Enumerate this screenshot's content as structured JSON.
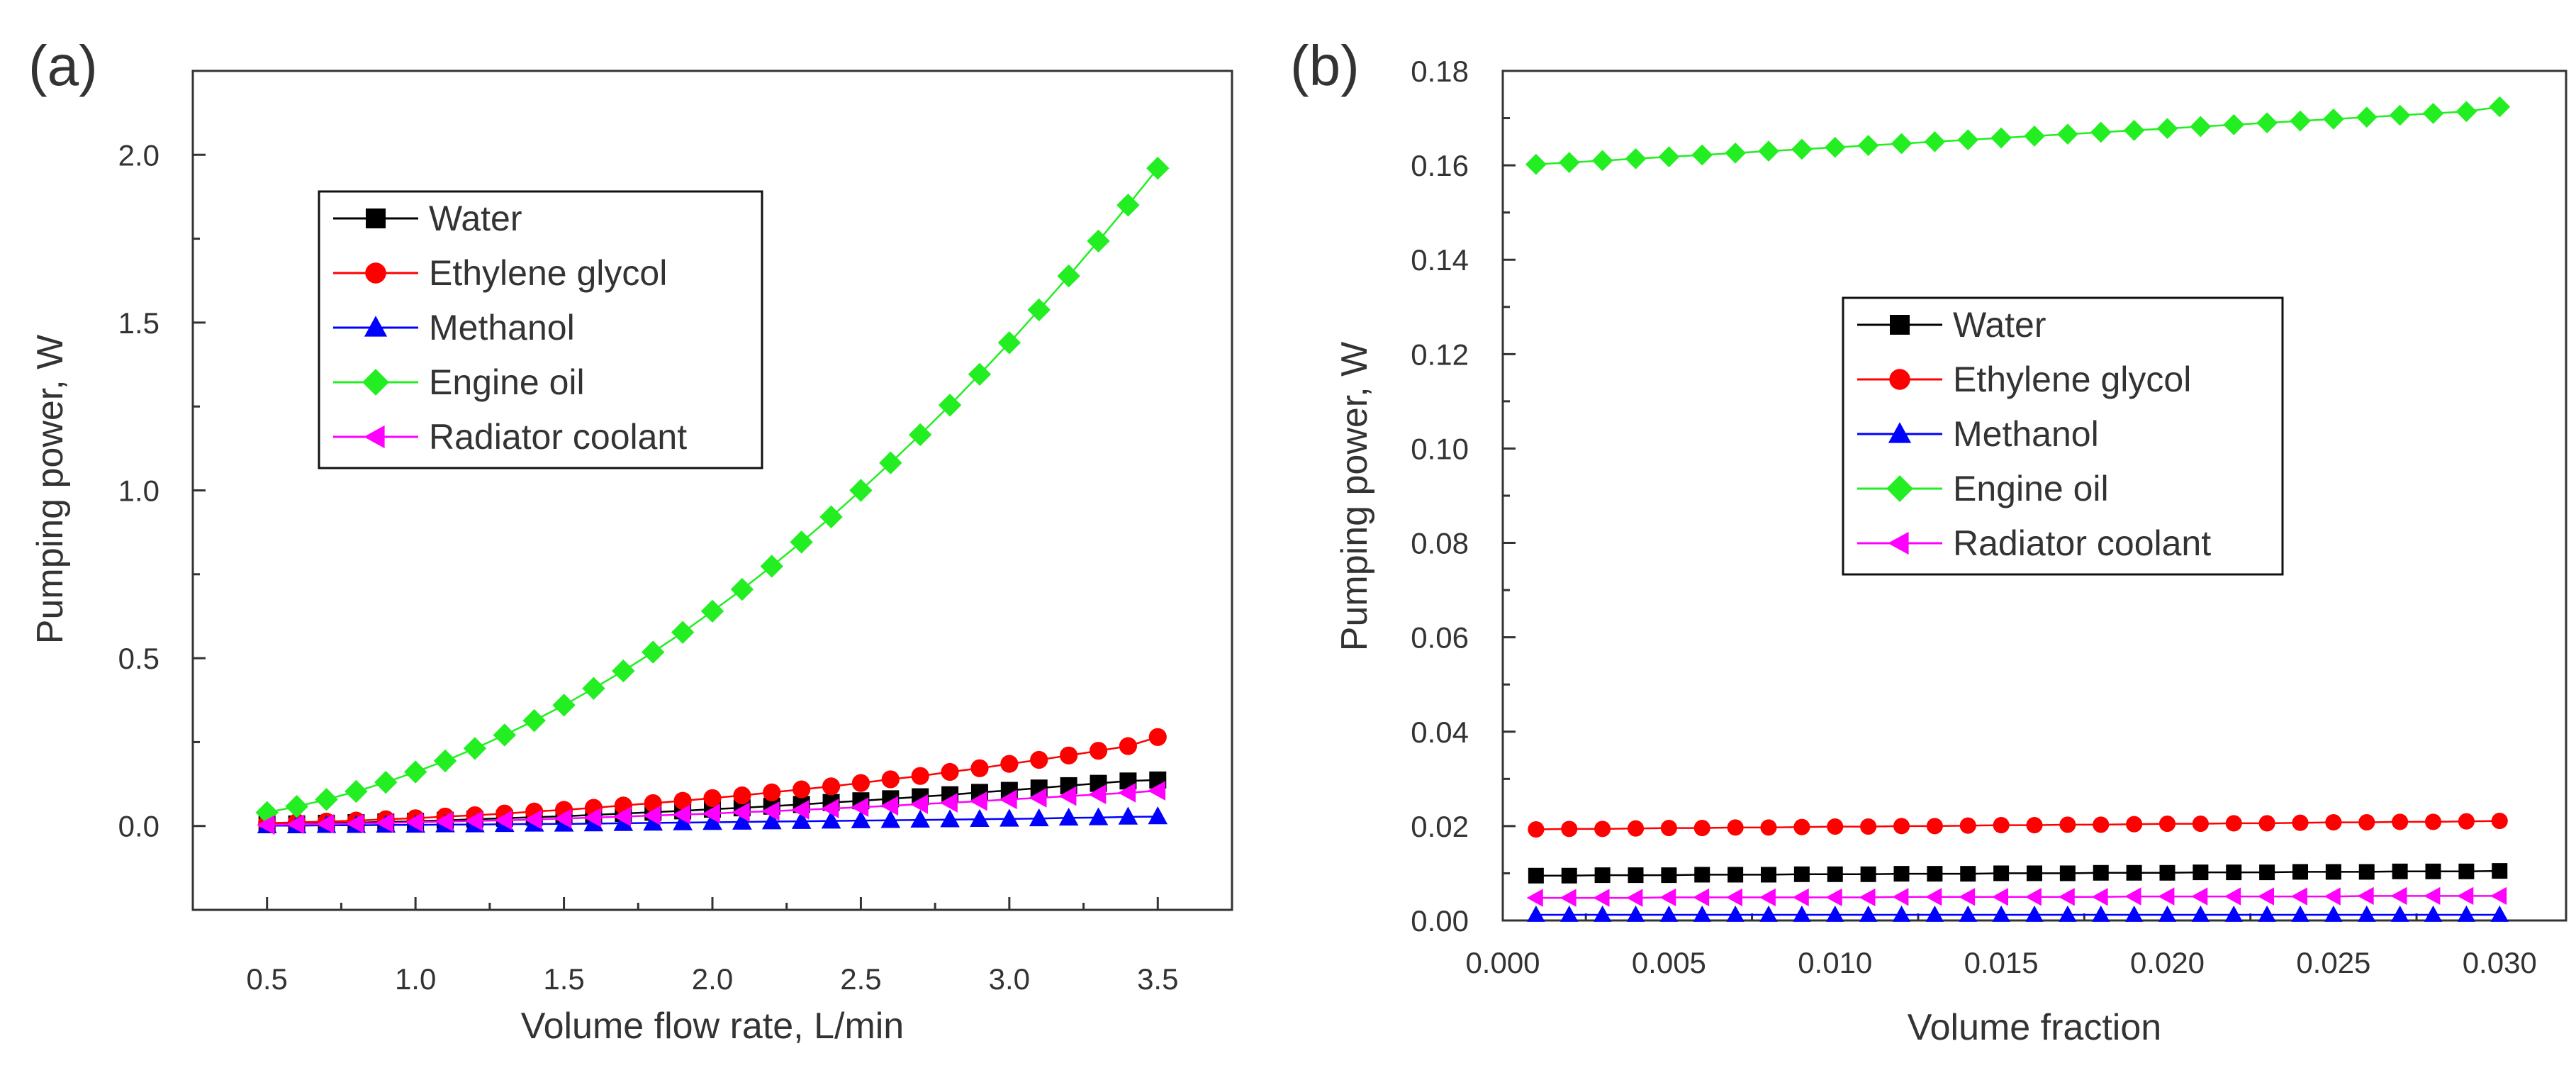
{
  "chart_data": [
    {
      "panel_label": "(a)",
      "type": "line",
      "xlabel": "Volume flow rate, L/min",
      "ylabel": "Pumping power, W",
      "xlim": [
        0.25,
        3.75
      ],
      "ylim": [
        -0.25,
        2.25
      ],
      "xticks": [
        0.5,
        1.0,
        1.5,
        2.0,
        2.5,
        3.0,
        3.5
      ],
      "xtick_labels": [
        "0.5",
        "1.0",
        "1.5",
        "2.0",
        "2.5",
        "3.0",
        "3.5"
      ],
      "yticks": [
        0.0,
        0.5,
        1.0,
        1.5,
        2.0
      ],
      "ytick_labels": [
        "0.0",
        "0.5",
        "1.0",
        "1.5",
        "2.0"
      ],
      "legend_position": "upper-left",
      "x": [
        0.5,
        0.6,
        0.7,
        0.8,
        0.9,
        1.0,
        1.1,
        1.2,
        1.3,
        1.4,
        1.5,
        1.6,
        1.7,
        1.8,
        1.9,
        2.0,
        2.1,
        2.2,
        2.3,
        2.4,
        2.5,
        2.6,
        2.7,
        2.8,
        2.9,
        3.0,
        3.1,
        3.2,
        3.3,
        3.4,
        3.5
      ],
      "series": [
        {
          "name": "Water",
          "color": "#000000",
          "marker": "square",
          "values": [
            0.005,
            0.006,
            0.008,
            0.01,
            0.012,
            0.014,
            0.017,
            0.02,
            0.023,
            0.026,
            0.029,
            0.033,
            0.037,
            0.041,
            0.045,
            0.05,
            0.054,
            0.059,
            0.064,
            0.07,
            0.075,
            0.081,
            0.087,
            0.093,
            0.1,
            0.106,
            0.113,
            0.12,
            0.127,
            0.134,
            0.137
          ]
        },
        {
          "name": "Ethylene glycol",
          "color": "#ff0000",
          "marker": "circle",
          "values": [
            0.008,
            0.011,
            0.013,
            0.016,
            0.02,
            0.023,
            0.028,
            0.032,
            0.037,
            0.043,
            0.048,
            0.054,
            0.061,
            0.068,
            0.075,
            0.083,
            0.091,
            0.1,
            0.109,
            0.118,
            0.128,
            0.139,
            0.149,
            0.161,
            0.172,
            0.185,
            0.197,
            0.21,
            0.224,
            0.238,
            0.265
          ]
        },
        {
          "name": "Methanol",
          "color": "#0000ff",
          "marker": "triangle-up",
          "values": [
            0.001,
            0.001,
            0.002,
            0.002,
            0.003,
            0.003,
            0.004,
            0.004,
            0.005,
            0.006,
            0.006,
            0.007,
            0.008,
            0.009,
            0.01,
            0.011,
            0.012,
            0.013,
            0.014,
            0.015,
            0.016,
            0.017,
            0.018,
            0.019,
            0.02,
            0.021,
            0.022,
            0.024,
            0.025,
            0.027,
            0.028
          ]
        },
        {
          "name": "Engine oil",
          "color": "#22ee22",
          "marker": "diamond",
          "values": [
            0.04,
            0.058,
            0.079,
            0.103,
            0.13,
            0.161,
            0.194,
            0.231,
            0.271,
            0.314,
            0.36,
            0.41,
            0.462,
            0.518,
            0.577,
            0.64,
            0.705,
            0.774,
            0.846,
            0.921,
            1.0,
            1.082,
            1.166,
            1.254,
            1.346,
            1.44,
            1.538,
            1.639,
            1.743,
            1.85,
            1.96
          ]
        },
        {
          "name": "Radiator coolant",
          "color": "#ff00ff",
          "marker": "triangle-left",
          "values": [
            0.003,
            0.005,
            0.006,
            0.007,
            0.009,
            0.011,
            0.013,
            0.015,
            0.017,
            0.019,
            0.022,
            0.025,
            0.028,
            0.031,
            0.034,
            0.037,
            0.041,
            0.044,
            0.048,
            0.052,
            0.056,
            0.06,
            0.065,
            0.069,
            0.074,
            0.079,
            0.084,
            0.089,
            0.094,
            0.099,
            0.105
          ]
        }
      ]
    },
    {
      "panel_label": "(b)",
      "type": "line",
      "xlabel": "Volume fraction",
      "ylabel": "Pumping power, W",
      "xlim": [
        0.0,
        0.032
      ],
      "ylim": [
        0.0,
        0.18
      ],
      "xticks": [
        0.0,
        0.005,
        0.01,
        0.015,
        0.02,
        0.025,
        0.03
      ],
      "xtick_labels": [
        "0.000",
        "0.005",
        "0.010",
        "0.015",
        "0.020",
        "0.025",
        "0.030"
      ],
      "yticks": [
        0.0,
        0.02,
        0.04,
        0.06,
        0.08,
        0.1,
        0.12,
        0.14,
        0.16,
        0.18
      ],
      "ytick_labels": [
        "0.00",
        "0.02",
        "0.04",
        "0.06",
        "0.08",
        "0.10",
        "0.12",
        "0.14",
        "0.16",
        "0.18"
      ],
      "legend_position": "center",
      "x": [
        0.001,
        0.002,
        0.003,
        0.004,
        0.005,
        0.006,
        0.007,
        0.008,
        0.009,
        0.01,
        0.011,
        0.012,
        0.013,
        0.014,
        0.015,
        0.016,
        0.017,
        0.018,
        0.019,
        0.02,
        0.021,
        0.022,
        0.023,
        0.024,
        0.025,
        0.026,
        0.027,
        0.028,
        0.029,
        0.03
      ],
      "series": [
        {
          "name": "Water",
          "color": "#000000",
          "marker": "square",
          "values": [
            0.0095,
            0.0095,
            0.0096,
            0.0096,
            0.0096,
            0.0097,
            0.0097,
            0.0097,
            0.0098,
            0.0098,
            0.0098,
            0.0099,
            0.0099,
            0.0099,
            0.01,
            0.01,
            0.01,
            0.0101,
            0.0101,
            0.0101,
            0.0102,
            0.0102,
            0.0102,
            0.0103,
            0.0103,
            0.0103,
            0.0104,
            0.0104,
            0.0104,
            0.0105
          ]
        },
        {
          "name": "Ethylene glycol",
          "color": "#ff0000",
          "marker": "circle",
          "values": [
            0.0193,
            0.0194,
            0.0194,
            0.0195,
            0.0196,
            0.0196,
            0.0197,
            0.0197,
            0.0198,
            0.0199,
            0.0199,
            0.02,
            0.02,
            0.0201,
            0.0202,
            0.0202,
            0.0203,
            0.0203,
            0.0204,
            0.0205,
            0.0205,
            0.0206,
            0.0206,
            0.0207,
            0.0208,
            0.0208,
            0.0209,
            0.0209,
            0.021,
            0.0211
          ]
        },
        {
          "name": "Methanol",
          "color": "#0000ff",
          "marker": "triangle-up",
          "values": [
            0.0012,
            0.0012,
            0.0012,
            0.0012,
            0.0012,
            0.0012,
            0.0012,
            0.0012,
            0.0012,
            0.0012,
            0.0012,
            0.0012,
            0.0012,
            0.0012,
            0.0012,
            0.0012,
            0.0012,
            0.0012,
            0.0012,
            0.0012,
            0.0012,
            0.0012,
            0.0012,
            0.0012,
            0.0012,
            0.0012,
            0.0012,
            0.0012,
            0.0012,
            0.0012
          ]
        },
        {
          "name": "Engine oil",
          "color": "#22ee22",
          "marker": "diamond",
          "values": [
            0.1602,
            0.1606,
            0.161,
            0.1614,
            0.1618,
            0.1622,
            0.1626,
            0.163,
            0.1634,
            0.1638,
            0.1642,
            0.1646,
            0.165,
            0.1654,
            0.1658,
            0.1662,
            0.1666,
            0.167,
            0.1674,
            0.1678,
            0.1682,
            0.1686,
            0.169,
            0.1694,
            0.1698,
            0.1702,
            0.1706,
            0.171,
            0.1714,
            0.1724
          ]
        },
        {
          "name": "Radiator coolant",
          "color": "#ff00ff",
          "marker": "triangle-left",
          "values": [
            0.0048,
            0.0048,
            0.0048,
            0.0048,
            0.0049,
            0.0049,
            0.0049,
            0.0049,
            0.0049,
            0.0049,
            0.0049,
            0.005,
            0.005,
            0.005,
            0.005,
            0.005,
            0.005,
            0.005,
            0.0051,
            0.0051,
            0.0051,
            0.0051,
            0.0051,
            0.0051,
            0.0051,
            0.0052,
            0.0052,
            0.0052,
            0.0052,
            0.0052
          ]
        }
      ]
    }
  ]
}
